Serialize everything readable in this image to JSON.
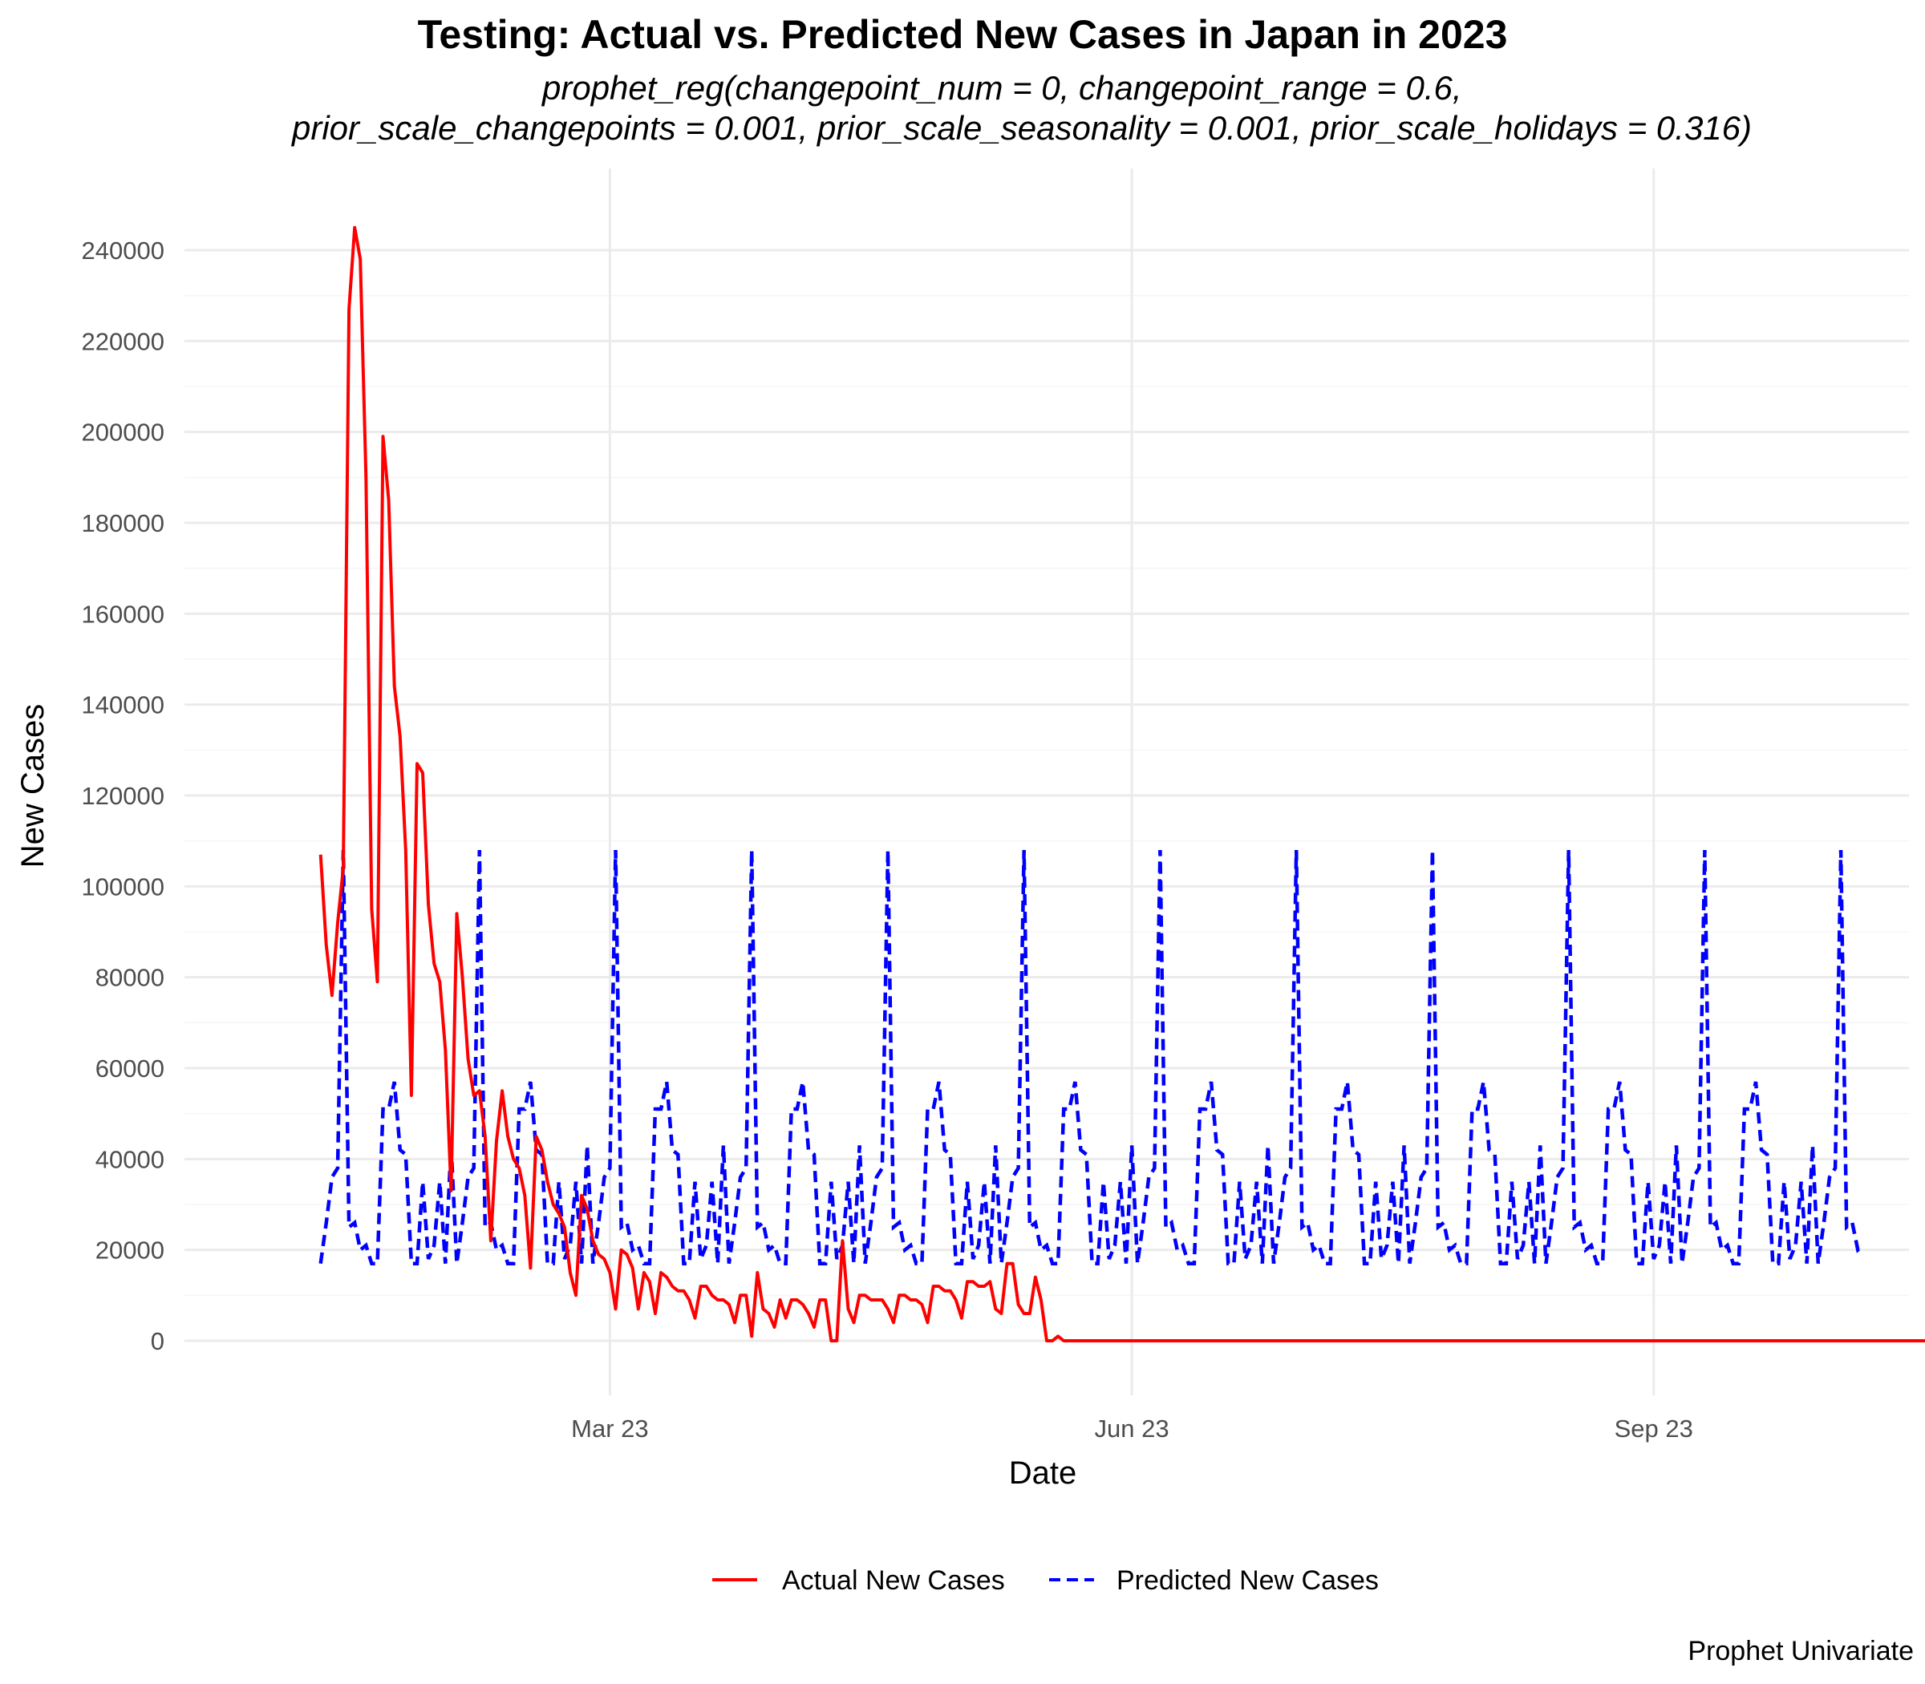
{
  "title": "Testing: Actual vs. Predicted New Cases in Japan in 2023",
  "subtitle_line1": "prophet_reg(changepoint_num = 0, changepoint_range = 0.6,",
  "subtitle_line2": "prior_scale_changepoints = 0.001, prior_scale_seasonality = 0.001, prior_scale_holidays = 0.316)",
  "caption": "Prophet Univariate",
  "chart_data": {
    "type": "line",
    "title": "Testing: Actual vs. Predicted New Cases in Japan in 2023",
    "xlabel": "Date",
    "ylabel": "New Cases",
    "x_start_date": "2023-01-09",
    "x_end_date": "2023-10-08",
    "xlim": [
      "2022-12-16",
      "2023-10-16"
    ],
    "ylim": [
      -12000,
      258000
    ],
    "x_ticks": [
      {
        "date": "2023-03-01",
        "label": "Mar 23"
      },
      {
        "date": "2023-06-01",
        "label": "Jun 23"
      },
      {
        "date": "2023-09-01",
        "label": "Sep 23"
      }
    ],
    "y_ticks": [
      0,
      20000,
      40000,
      60000,
      80000,
      100000,
      120000,
      140000,
      160000,
      180000,
      200000,
      220000,
      240000
    ],
    "grid": true,
    "legend_position": "bottom",
    "series": [
      {
        "name": "Actual New Cases",
        "color": "#ff0000",
        "dash": "solid",
        "values": [
          107000,
          87000,
          76000,
          92000,
          104000,
          227000,
          245000,
          238000,
          190000,
          95000,
          79000,
          199000,
          185000,
          144000,
          133000,
          108000,
          54000,
          127000,
          125000,
          96000,
          83000,
          79000,
          64000,
          33000,
          94000,
          80000,
          62000,
          54000,
          55000,
          45000,
          22000,
          44000,
          55000,
          45000,
          40000,
          38000,
          32000,
          16000,
          45000,
          42000,
          35000,
          30000,
          28000,
          25000,
          15000,
          10000,
          32000,
          29000,
          22000,
          19000,
          18000,
          15000,
          7000,
          20000,
          19000,
          16000,
          7000,
          15000,
          13000,
          6000,
          15000,
          14000,
          12000,
          11000,
          11000,
          9000,
          5000,
          12000,
          12000,
          10000,
          9000,
          9000,
          8000,
          4000,
          10000,
          10000,
          1000,
          15000,
          7000,
          6000,
          3000,
          9000,
          5000,
          9000,
          9000,
          8000,
          6000,
          3000,
          9000,
          9000,
          0,
          0,
          22000,
          7000,
          4000,
          10000,
          10000,
          9000,
          9000,
          9000,
          7000,
          4000,
          10000,
          10000,
          9000,
          9000,
          8000,
          4000,
          12000,
          12000,
          11000,
          11000,
          9000,
          5000,
          13000,
          13000,
          12000,
          12000,
          13000,
          7000,
          6000,
          17000,
          17000,
          8000,
          6000,
          6000,
          14000,
          9000,
          0,
          0,
          1000,
          0,
          0,
          0,
          0,
          0,
          0,
          0,
          0,
          0,
          0,
          0,
          0,
          0,
          0,
          0,
          0,
          0,
          0,
          0,
          0,
          0,
          0,
          0,
          0,
          0,
          0,
          0,
          0,
          0,
          0,
          0,
          0,
          0,
          0,
          0,
          0,
          0,
          0,
          0,
          0,
          0,
          0,
          0,
          0,
          0,
          0,
          0,
          0,
          0,
          0,
          0,
          0,
          0,
          0,
          0,
          0,
          0,
          0,
          0,
          0,
          0,
          0,
          0,
          0,
          0,
          0,
          0,
          0,
          0,
          0,
          0,
          0,
          0,
          0,
          0,
          0,
          0,
          0,
          0,
          0,
          0,
          0,
          0,
          0,
          0,
          0,
          0,
          0,
          0,
          0,
          0,
          0,
          0,
          0,
          0,
          0,
          0,
          0,
          0,
          0,
          0,
          0,
          0,
          0,
          0,
          0,
          0,
          0,
          0,
          0,
          0,
          0,
          0,
          0,
          0,
          0,
          0,
          0,
          0,
          0,
          0,
          0,
          0,
          0,
          0,
          0,
          0,
          0,
          0,
          0,
          0,
          0,
          0,
          0,
          0,
          0,
          0,
          0,
          0,
          0,
          0,
          0,
          0,
          0,
          0,
          0,
          0,
          0,
          0,
          0,
          0,
          0,
          0,
          0,
          0,
          0,
          0,
          0,
          0,
          0,
          0,
          0,
          0,
          0,
          0,
          0,
          0,
          0,
          0,
          0,
          0
        ]
      },
      {
        "name": "Predicted New Cases",
        "color": "#0000ff",
        "dash": "dashed",
        "weekly_pattern": [
          17000,
          26000,
          36000,
          38000,
          108000,
          25000,
          26000,
          20000,
          21000,
          17000,
          17000,
          51000,
          51000,
          57000,
          42000,
          41000,
          17000,
          17000,
          35000,
          18000,
          21000,
          35000,
          17000,
          43000
        ],
        "weekly_pattern_note": "24-point cycle repeating roughly every 3 weeks; minima near 17000, peaks near 108000 and 57000"
      }
    ]
  },
  "legend": {
    "items": [
      {
        "label": "Actual New Cases",
        "color": "#ff0000"
      },
      {
        "label": "Predicted New Cases",
        "color": "#0000ff"
      }
    ]
  }
}
